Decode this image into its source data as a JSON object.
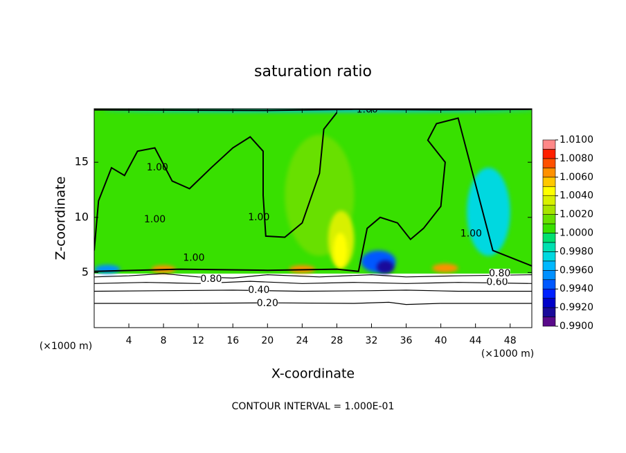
{
  "chart_data": {
    "type": "contour",
    "title": "saturation ratio",
    "xlabel": "X-coordinate",
    "ylabel": "Z-coordinate",
    "x_unit_label": "(×1000 m)",
    "y_unit_label": "(×1000 m)",
    "footer": "CONTOUR INTERVAL = 1.000E-01",
    "xlim": [
      0,
      50.5
    ],
    "ylim": [
      0,
      19.85
    ],
    "xticks": [
      4,
      8,
      12,
      16,
      20,
      24,
      28,
      32,
      36,
      40,
      44,
      48
    ],
    "yticks": [
      5,
      10,
      15
    ],
    "colorbar": {
      "levels": [
        0.99,
        0.991,
        0.992,
        0.993,
        0.994,
        0.995,
        0.996,
        0.997,
        0.998,
        0.999,
        1.0,
        1.001,
        1.002,
        1.003,
        1.004,
        1.005,
        1.006,
        1.007,
        1.008,
        1.009,
        1.01
      ],
      "colors": [
        "#5a0a8a",
        "#1a0a9a",
        "#0000c8",
        "#0020ff",
        "#0058ff",
        "#0090ff",
        "#00b8ff",
        "#00d8e0",
        "#00e0b0",
        "#00e070",
        "#38e000",
        "#68e000",
        "#a8e400",
        "#d8f000",
        "#ffff00",
        "#ffc800",
        "#ff9000",
        "#ff5000",
        "#ff2000",
        "#ff8888"
      ],
      "ticks": [
        {
          "value": 0.99,
          "label": "0.9900"
        },
        {
          "value": 0.992,
          "label": "0.9920"
        },
        {
          "value": 0.994,
          "label": "0.9940"
        },
        {
          "value": 0.996,
          "label": "0.9960"
        },
        {
          "value": 0.998,
          "label": "0.9980"
        },
        {
          "value": 1.0,
          "label": "1.0000"
        },
        {
          "value": 1.002,
          "label": "1.0020"
        },
        {
          "value": 1.004,
          "label": "1.0040"
        },
        {
          "value": 1.006,
          "label": "1.0060"
        },
        {
          "value": 1.008,
          "label": "1.0080"
        },
        {
          "value": 1.01,
          "label": "1.0100"
        }
      ]
    },
    "field": {
      "value": 1.0003,
      "zmin": 4.9
    },
    "patches": [
      {
        "value": 1.0015,
        "x": 26,
        "z": 12,
        "rx": 4,
        "rz": 5.5
      },
      {
        "value": 0.9975,
        "x": 45.5,
        "z": 10.5,
        "rx": 2.5,
        "rz": 4
      },
      {
        "value": 1.003,
        "x": 28.5,
        "z": 8,
        "rx": 1.5,
        "rz": 2.6
      },
      {
        "value": 1.0045,
        "x": 28.4,
        "z": 7,
        "rx": 0.8,
        "rz": 1.6
      },
      {
        "value": 0.9945,
        "x": 32.8,
        "z": 6,
        "rx": 2,
        "rz": 1
      },
      {
        "value": 0.9912,
        "x": 33.6,
        "z": 5.5,
        "rx": 1,
        "rz": 0.6
      },
      {
        "value": 1.0065,
        "x": 8,
        "z": 5.3,
        "rx": 1.4,
        "rz": 0.35
      },
      {
        "value": 1.0065,
        "x": 24,
        "z": 5.3,
        "rx": 1.5,
        "rz": 0.35
      },
      {
        "value": 1.0065,
        "x": 40.5,
        "z": 5.4,
        "rx": 1.5,
        "rz": 0.4
      },
      {
        "value": 0.9955,
        "x": 1.5,
        "z": 5.3,
        "rx": 1.5,
        "rz": 0.4
      },
      {
        "value": 0.9965,
        "x": 26,
        "z": 19.7,
        "rx": 25,
        "rz": 0.15
      }
    ],
    "contours": [
      {
        "level": 0.2,
        "label": "0.20",
        "segments": [
          {
            "x": [
              0,
              10,
              20,
              30,
              34,
              36,
              40,
              50.5
            ],
            "z": [
              2.2,
              2.2,
              2.25,
              2.2,
              2.3,
              2.1,
              2.2,
              2.2
            ]
          }
        ],
        "labels": [
          {
            "x": 20,
            "z": 2.2
          }
        ]
      },
      {
        "level": 0.4,
        "label": "0.40",
        "segments": [
          {
            "x": [
              0,
              8,
              16,
              24,
              32,
              36,
              42,
              50.5
            ],
            "z": [
              3.3,
              3.35,
              3.4,
              3.3,
              3.35,
              3.4,
              3.3,
              3.3
            ]
          }
        ],
        "labels": [
          {
            "x": 19,
            "z": 3.4
          }
        ]
      },
      {
        "level": 0.6,
        "label": "0.60",
        "segments": [
          {
            "x": [
              0,
              6,
              12,
              18,
              24,
              30,
              36,
              42,
              50.5
            ],
            "z": [
              4.0,
              4.1,
              4.0,
              4.2,
              4.0,
              4.1,
              4.0,
              4.1,
              4.0
            ]
          }
        ],
        "labels": [
          {
            "x": 46.5,
            "z": 4.1
          }
        ]
      },
      {
        "level": 0.8,
        "label": "0.80",
        "segments": [
          {
            "x": [
              0,
              4,
              8,
              12,
              16,
              20,
              26,
              32,
              36,
              42,
              50.5
            ],
            "z": [
              4.6,
              4.7,
              4.9,
              4.6,
              4.5,
              4.8,
              4.6,
              4.8,
              4.6,
              4.7,
              4.8
            ]
          }
        ],
        "labels": [
          {
            "x": 13.5,
            "z": 4.4
          },
          {
            "x": 46.8,
            "z": 4.9
          }
        ]
      },
      {
        "level": 1.0,
        "label": "1.00",
        "segments": [
          {
            "x": [
              0,
              0.5,
              2,
              3.5,
              5,
              7,
              9,
              11,
              13.5,
              16,
              18,
              19.5,
              19.5,
              19.8,
              22,
              24,
              26,
              26.5,
              28
            ],
            "z": [
              7,
              11.5,
              14.5,
              13.8,
              16,
              16.3,
              13.3,
              12.6,
              14.5,
              16.3,
              17.3,
              16,
              12,
              8.3,
              8.2,
              9.5,
              14,
              18,
              19.5
            ]
          },
          {
            "x": [
              0,
              10,
              20,
              28,
              30.5,
              31.5,
              33,
              35,
              36.5,
              38,
              40,
              40.5,
              38.5,
              39.5,
              42,
              44,
              46,
              50.5
            ],
            "z": [
              5.1,
              5.3,
              5.2,
              5.3,
              5.1,
              9,
              10,
              9.5,
              8,
              9,
              11,
              15,
              17,
              18.5,
              19,
              13,
              7,
              5.6
            ]
          },
          {
            "x": [
              0,
              20,
              30,
              40,
              50.5
            ],
            "z": [
              19.75,
              19.7,
              19.8,
              19.75,
              19.8
            ]
          }
        ],
        "labels": [
          {
            "x": 7.3,
            "z": 14.5
          },
          {
            "x": 7,
            "z": 9.8
          },
          {
            "x": 19,
            "z": 10
          },
          {
            "x": 31.5,
            "z": 19.75
          },
          {
            "x": 43.5,
            "z": 8.5
          },
          {
            "x": 11.5,
            "z": 6.3
          }
        ]
      }
    ]
  }
}
